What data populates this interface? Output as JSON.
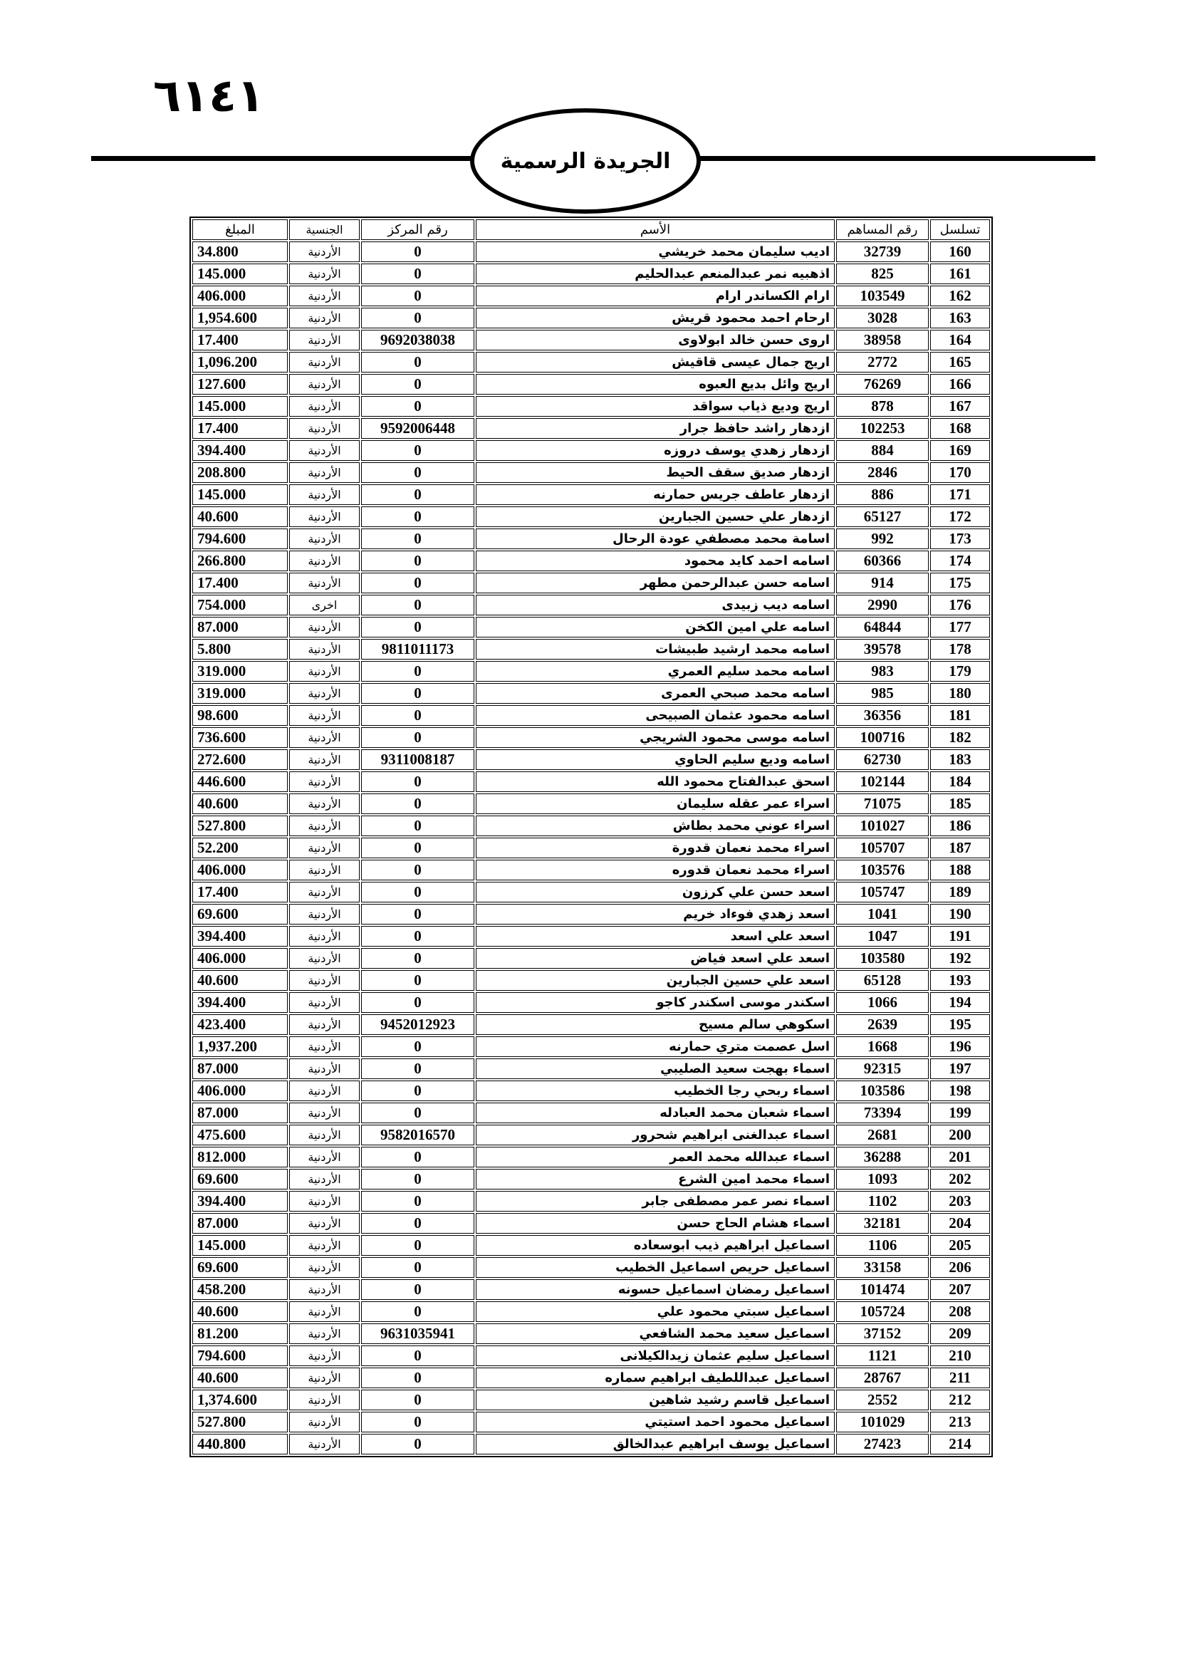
{
  "header": {
    "page_number": "٦١٤١",
    "gazette_title": "الجريدة الرسمية"
  },
  "table": {
    "columns": [
      "تسلسل",
      "رقم المساهم",
      "الأسم",
      "رقم المركز",
      "الجنسية",
      "المبلغ"
    ],
    "rows": [
      [
        "160",
        "32739",
        "اديب سليمان محمد خريشي",
        "0",
        "الأردنية",
        "34.800"
      ],
      [
        "161",
        "825",
        "اذهبيه نمر عبدالمنعم عبدالحليم",
        "0",
        "الأردنية",
        "145.000"
      ],
      [
        "162",
        "103549",
        "ارام الكساندر  ارام",
        "0",
        "الأردنية",
        "406.000"
      ],
      [
        "163",
        "3028",
        "ارحام احمد محمود قريش",
        "0",
        "الأردنية",
        "1,954.600"
      ],
      [
        "164",
        "38958",
        "اروى حسن خالد ابولاوى",
        "9692038038",
        "الأردنية",
        "17.400"
      ],
      [
        "165",
        "2772",
        "اريج جمال عيسى قاقيش",
        "0",
        "الأردنية",
        "1,096.200"
      ],
      [
        "166",
        "76269",
        "اريج وائل بديع العبوه",
        "0",
        "الأردنية",
        "127.600"
      ],
      [
        "167",
        "878",
        "اريج وديع ذياب سواقد",
        "0",
        "الأردنية",
        "145.000"
      ],
      [
        "168",
        "102253",
        "ازدهار راشد حافظ جرار",
        "9592006448",
        "الأردنية",
        "17.400"
      ],
      [
        "169",
        "884",
        "ازدهار زهدي يوسف دروزه",
        "0",
        "الأردنية",
        "394.400"
      ],
      [
        "170",
        "2846",
        "ازدهار صديق سقف الحيط",
        "0",
        "الأردنية",
        "208.800"
      ],
      [
        "171",
        "886",
        "ازدهار عاطف جريس حمارنه",
        "0",
        "الأردنية",
        "145.000"
      ],
      [
        "172",
        "65127",
        "ازدهار علي حسين الجبارين",
        "0",
        "الأردنية",
        "40.600"
      ],
      [
        "173",
        "992",
        "اسامة محمد مصطفي عودة الرحال",
        "0",
        "الأردنية",
        "794.600"
      ],
      [
        "174",
        "60366",
        "اسامه احمد كايد محمود",
        "0",
        "الأردنية",
        "266.800"
      ],
      [
        "175",
        "914",
        "اسامه حسن عبدالرحمن مطهر",
        "0",
        "الأردنية",
        "17.400"
      ],
      [
        "176",
        "2990",
        "اسامه ديب  زبيدى",
        "0",
        "اخرى",
        "754.000"
      ],
      [
        "177",
        "64844",
        "اسامه علي امين الكخن",
        "0",
        "الأردنية",
        "87.000"
      ],
      [
        "178",
        "39578",
        "اسامه محمد ارشيد طبيشات",
        "9811011173",
        "الأردنية",
        "5.800"
      ],
      [
        "179",
        "983",
        "اسامه محمد سليم العمري",
        "0",
        "الأردنية",
        "319.000"
      ],
      [
        "180",
        "985",
        "اسامه محمد صبحي العمرى",
        "0",
        "الأردنية",
        "319.000"
      ],
      [
        "181",
        "36356",
        "اسامه محمود عثمان الصبيحى",
        "0",
        "الأردنية",
        "98.600"
      ],
      [
        "182",
        "100716",
        "اسامه موسى محمود الشريجي",
        "0",
        "الأردنية",
        "736.600"
      ],
      [
        "183",
        "62730",
        "اسامه وديع سليم الحاوي",
        "9311008187",
        "الأردنية",
        "272.600"
      ],
      [
        "184",
        "102144",
        "اسحق عبدالفتاح محمود الله",
        "0",
        "الأردنية",
        "446.600"
      ],
      [
        "185",
        "71075",
        "اسراء عمر عقله سليمان",
        "0",
        "الأردنية",
        "40.600"
      ],
      [
        "186",
        "101027",
        "اسراء عوني محمد بطاش",
        "0",
        "الأردنية",
        "527.800"
      ],
      [
        "187",
        "105707",
        "اسراء محمد نعمان قدورة",
        "0",
        "الأردنية",
        "52.200"
      ],
      [
        "188",
        "103576",
        "اسراء محمد نعمان قدوره",
        "0",
        "الأردنية",
        "406.000"
      ],
      [
        "189",
        "105747",
        "اسعد حسن علي كرزون",
        "0",
        "الأردنية",
        "17.400"
      ],
      [
        "190",
        "1041",
        "اسعد زهدي فوءاد خريم",
        "0",
        "الأردنية",
        "69.600"
      ],
      [
        "191",
        "1047",
        "اسعد علي  اسعد",
        "0",
        "الأردنية",
        "394.400"
      ],
      [
        "192",
        "103580",
        "اسعد علي اسعد فياض",
        "0",
        "الأردنية",
        "406.000"
      ],
      [
        "193",
        "65128",
        "اسعد علي حسين الجبارين",
        "0",
        "الأردنية",
        "40.600"
      ],
      [
        "194",
        "1066",
        "اسكندر موسى اسكندر كاجو",
        "0",
        "الأردنية",
        "394.400"
      ],
      [
        "195",
        "2639",
        "اسكوهي سالم  مسيح",
        "9452012923",
        "الأردنية",
        "423.400"
      ],
      [
        "196",
        "1668",
        "اسل عصمت متري حمارنه",
        "0",
        "الأردنية",
        "1,937.200"
      ],
      [
        "197",
        "92315",
        "اسماء بهجت سعيد الصليبي",
        "0",
        "الأردنية",
        "87.000"
      ],
      [
        "198",
        "103586",
        "اسماء ربحي رجا الخطيب",
        "0",
        "الأردنية",
        "406.000"
      ],
      [
        "199",
        "73394",
        "اسماء شعبان محمد العبادله",
        "0",
        "الأردنية",
        "87.000"
      ],
      [
        "200",
        "2681",
        "اسماء عبدالغنى ابراهيم شحرور",
        "9582016570",
        "الأردنية",
        "475.600"
      ],
      [
        "201",
        "36288",
        "اسماء عبدالله محمد العمر",
        "0",
        "الأردنية",
        "812.000"
      ],
      [
        "202",
        "1093",
        "اسماء محمد امين الشرع",
        "0",
        "الأردنية",
        "69.600"
      ],
      [
        "203",
        "1102",
        "اسماء نصر عمر مصطفى جابر",
        "0",
        "الأردنية",
        "394.400"
      ],
      [
        "204",
        "32181",
        "اسماء هشام الحاج حسن",
        "0",
        "الأردنية",
        "87.000"
      ],
      [
        "205",
        "1106",
        "اسماعيل ابراهيم ذيب ابوسعاده",
        "0",
        "الأردنية",
        "145.000"
      ],
      [
        "206",
        "33158",
        "اسماعيل حريص اسماعيل الخطيب",
        "0",
        "الأردنية",
        "69.600"
      ],
      [
        "207",
        "101474",
        "اسماعيل رمضان اسماعيل حسونه",
        "0",
        "الأردنية",
        "458.200"
      ],
      [
        "208",
        "105724",
        "اسماعيل سبتي محمود علي",
        "0",
        "الأردنية",
        "40.600"
      ],
      [
        "209",
        "37152",
        "اسماعيل سعيد محمد الشافعي",
        "9631035941",
        "الأردنية",
        "81.200"
      ],
      [
        "210",
        "1121",
        "اسماعيل سليم عثمان زيدالكيلانى",
        "0",
        "الأردنية",
        "794.600"
      ],
      [
        "211",
        "28767",
        "اسماعيل عبداللطيف ابراهيم سماره",
        "0",
        "الأردنية",
        "40.600"
      ],
      [
        "212",
        "2552",
        "اسماعيل قاسم رشيد شاهين",
        "0",
        "الأردنية",
        "1,374.600"
      ],
      [
        "213",
        "101029",
        "اسماعيل محمود احمد استيتي",
        "0",
        "الأردنية",
        "527.800"
      ],
      [
        "214",
        "27423",
        "اسماعيل يوسف ابراهيم عبدالخالق",
        "0",
        "الأردنية",
        "440.800"
      ]
    ]
  }
}
